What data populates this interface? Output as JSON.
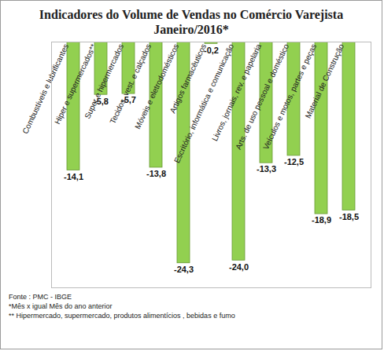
{
  "chart_data": {
    "type": "bar",
    "title": "Indicadores do Volume de Vendas no Comércio Varejista",
    "subtitle": "Janeiro/2016*",
    "categories": [
      "Combustíveis e lubrificantes",
      "Hiper e supermercados**",
      "Super e hipermercados",
      "Tecidos, vest. e calçados",
      "Móveis e eletrodomésticos",
      "Artigos farmacêuticos",
      "Escritório, informática e comunicação",
      "Livros, jornais, rev. e papelaria",
      "Arts. de uso pessoal e doméstico",
      "Veículos e motos, partes e peças",
      "Material de Construção"
    ],
    "values": [
      -14.1,
      -5.8,
      -5.7,
      -13.8,
      -24.3,
      -0.2,
      -24.0,
      -13.3,
      -12.5,
      -18.9,
      -18.5
    ],
    "value_labels": [
      "-14,1",
      "-5,8",
      "-5,7",
      "-13,8",
      "-24,3",
      "-0,2",
      "-24,0",
      "-13,3",
      "-12,5",
      "-18,9",
      "-18,5"
    ],
    "color": "#92d050",
    "ylim": [
      -27,
      0
    ],
    "yticks": [],
    "grid": false,
    "data_labels": true,
    "tick_labels": "x",
    "notes": [
      "Fonte : PMC - IBGE",
      "*Mês x igual Mês do ano anterior",
      "** Hipermercado, supermercado, produtos alimentícios , bebidas e fumo"
    ]
  }
}
